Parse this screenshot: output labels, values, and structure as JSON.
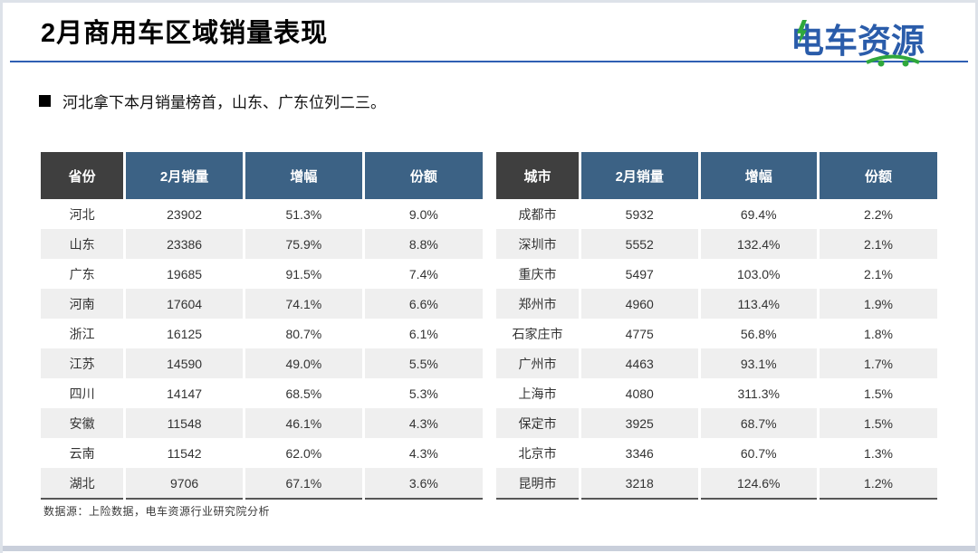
{
  "slide": {
    "title": "2月商用车区域销量表现",
    "bullet": "河北拿下本月销量榜首，山东、广东位列二三。",
    "footer": "数据源：上险数据，电车资源行业研究院分析",
    "logo_text": "电车资源"
  },
  "icons": {
    "bullet": "black-square",
    "logo_bolt": "green-lightning",
    "logo_car": "green-car-swoosh"
  },
  "colors": {
    "accent_line": "#2f5fb3",
    "header_first_col": "#3f3f3f",
    "header_blue": "#3c6285",
    "row_alt": "#efefef",
    "table_bottom_border": "#575757",
    "logo_blue": "#2a5caa",
    "logo_green": "#2fa83c",
    "bottom_strip": "#c9cfdb",
    "page_border": "#dde2e9"
  },
  "province_table": {
    "headers": [
      "省份",
      "2月销量",
      "增幅",
      "份额"
    ],
    "rows": [
      [
        "河北",
        "23902",
        "51.3%",
        "9.0%"
      ],
      [
        "山东",
        "23386",
        "75.9%",
        "8.8%"
      ],
      [
        "广东",
        "19685",
        "91.5%",
        "7.4%"
      ],
      [
        "河南",
        "17604",
        "74.1%",
        "6.6%"
      ],
      [
        "浙江",
        "16125",
        "80.7%",
        "6.1%"
      ],
      [
        "江苏",
        "14590",
        "49.0%",
        "5.5%"
      ],
      [
        "四川",
        "14147",
        "68.5%",
        "5.3%"
      ],
      [
        "安徽",
        "11548",
        "46.1%",
        "4.3%"
      ],
      [
        "云南",
        "11542",
        "62.0%",
        "4.3%"
      ],
      [
        "湖北",
        "9706",
        "67.1%",
        "3.6%"
      ]
    ]
  },
  "city_table": {
    "headers": [
      "城市",
      "2月销量",
      "增幅",
      "份额"
    ],
    "rows": [
      [
        "成都市",
        "5932",
        "69.4%",
        "2.2%"
      ],
      [
        "深圳市",
        "5552",
        "132.4%",
        "2.1%"
      ],
      [
        "重庆市",
        "5497",
        "103.0%",
        "2.1%"
      ],
      [
        "郑州市",
        "4960",
        "113.4%",
        "1.9%"
      ],
      [
        "石家庄市",
        "4775",
        "56.8%",
        "1.8%"
      ],
      [
        "广州市",
        "4463",
        "93.1%",
        "1.7%"
      ],
      [
        "上海市",
        "4080",
        "311.3%",
        "1.5%"
      ],
      [
        "保定市",
        "3925",
        "68.7%",
        "1.5%"
      ],
      [
        "北京市",
        "3346",
        "60.7%",
        "1.3%"
      ],
      [
        "昆明市",
        "3218",
        "124.6%",
        "1.2%"
      ]
    ]
  }
}
